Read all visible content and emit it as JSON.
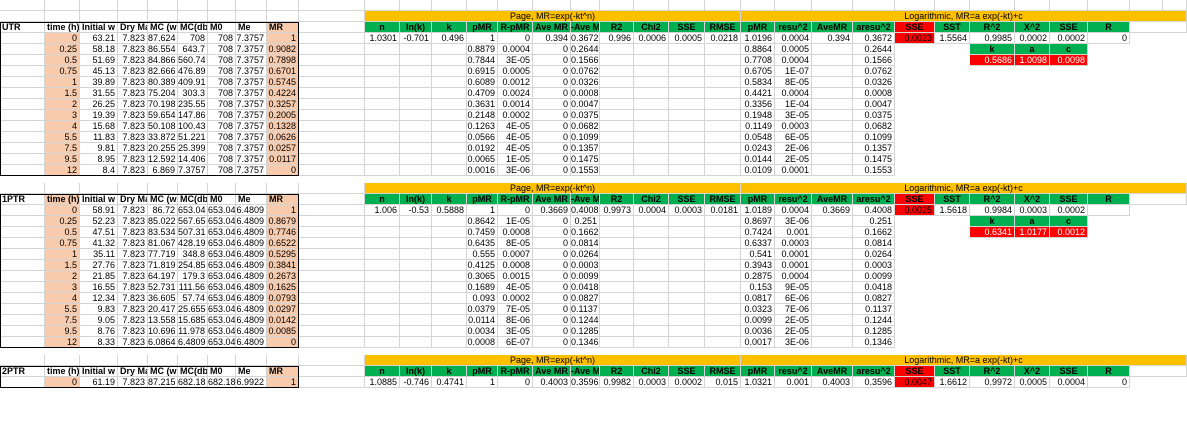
{
  "colors": {
    "header_bg": "#ffffff",
    "time_bg": "#f8cbad",
    "mr_bg": "#f8cbad",
    "page_title_bg": "#ffc000",
    "page_header_bg": "#00b050",
    "log_title_bg": "#ffc000",
    "log_header_bg": "#00b050",
    "red_bg": "#ff0000",
    "green_bg": "#00b050",
    "grid": "#d4d4d4"
  },
  "model_titles": {
    "page": "Page, MR=exp(-kt^n)",
    "log": "Logarithmic, MR=a exp(-kt)+c"
  },
  "headers": {
    "left": [
      "time (h)",
      "Initial w",
      "Dry Ma",
      "MC (wb",
      "MC(db)",
      "M0",
      "Me",
      "MR"
    ],
    "page": [
      "n",
      "ln(k)",
      "k",
      "pMR",
      "R-pMR",
      "Ave MR",
      "-Ave M",
      "R2",
      "Chi2",
      "SSE",
      "RMSE"
    ],
    "log": [
      "pMR",
      "resu^2",
      "AveMR",
      "aresu^2",
      "SSE",
      "SST",
      "R^2",
      "X^2",
      "SSE",
      "R"
    ],
    "kac": [
      "k",
      "a",
      "c"
    ]
  },
  "groups": [
    {
      "label": "UTR",
      "header_style": "white",
      "left_rows": [
        [
          "0",
          "63.21",
          "7.823",
          "87.624",
          "708",
          "708",
          "7.3757",
          "1"
        ],
        [
          "0.25",
          "58.18",
          "7.823",
          "86.554",
          "643.7",
          "708",
          "7.3757",
          "0.9082"
        ],
        [
          "0.5",
          "51.69",
          "7.823",
          "84.866",
          "560.74",
          "708",
          "7.3757",
          "0.7898"
        ],
        [
          "0.75",
          "45.13",
          "7.823",
          "82.666",
          "476.89",
          "708",
          "7.3757",
          "0.6701"
        ],
        [
          "1",
          "39.89",
          "7.823",
          "80.389",
          "409.91",
          "708",
          "7.3757",
          "0.5745"
        ],
        [
          "1.5",
          "31.55",
          "7.823",
          "75.204",
          "303.3",
          "708",
          "7.3757",
          "0.4224"
        ],
        [
          "2",
          "26.25",
          "7.823",
          "70.198",
          "235.55",
          "708",
          "7.3757",
          "0.3257"
        ],
        [
          "3",
          "19.39",
          "7.823",
          "59.654",
          "147.86",
          "708",
          "7.3757",
          "0.2005"
        ],
        [
          "4",
          "15.68",
          "7.823",
          "50.108",
          "100.43",
          "708",
          "7.3757",
          "0.1328"
        ],
        [
          "5.5",
          "11.83",
          "7.823",
          "33.872",
          "51.221",
          "708",
          "7.3757",
          "0.0626"
        ],
        [
          "7.5",
          "9.81",
          "7.823",
          "20.255",
          "25.399",
          "708",
          "7.3757",
          "0.0257"
        ],
        [
          "9.5",
          "8.95",
          "7.823",
          "12.592",
          "14.406",
          "708",
          "7.3757",
          "0.0117"
        ],
        [
          "12",
          "8.4",
          "7.823",
          "6.869",
          "7.3757",
          "708",
          "7.3757",
          "0"
        ]
      ],
      "page_params": [
        "1.0301",
        "-0.701",
        "0.496"
      ],
      "page_stats": [
        "0.394",
        "0.3672",
        "0.996",
        "0.0006",
        "0.0005",
        "0.0218"
      ],
      "page_rows": [
        [
          "1",
          "0"
        ],
        [
          "0.8879",
          "0.0004"
        ],
        [
          "0.7844",
          "3E-05"
        ],
        [
          "0.6915",
          "0.0005"
        ],
        [
          "0.6089",
          "0.0012"
        ],
        [
          "0.4709",
          "0.0024"
        ],
        [
          "0.3631",
          "0.0014"
        ],
        [
          "0.2148",
          "0.0002"
        ],
        [
          "0.1263",
          "4E-05"
        ],
        [
          "0.0566",
          "4E-05"
        ],
        [
          "0.0192",
          "4E-05"
        ],
        [
          "0.0065",
          "1E-05"
        ],
        [
          "0.0016",
          "3E-06"
        ]
      ],
      "page_avemr_col": [
        "0",
        "0",
        "0",
        "0",
        "0",
        "0",
        "0",
        "0",
        "0",
        "0",
        "0",
        "0"
      ],
      "page_dev_col": [
        "0.2644",
        "0.1566",
        "0.0762",
        "0.0326",
        "0.0008",
        "0.0047",
        "0.0375",
        "0.0682",
        "0.1099",
        "0.1357",
        "0.1475",
        "0.1553"
      ],
      "log_rows": [
        [
          "1.0196",
          "0.0004"
        ],
        [
          "0.8864",
          "0.0005"
        ],
        [
          "0.7708",
          "0.0004"
        ],
        [
          "0.6705",
          "1E-07"
        ],
        [
          "0.5834",
          "8E-05"
        ],
        [
          "0.4421",
          "0.0004"
        ],
        [
          "0.3356",
          "1E-04"
        ],
        [
          "0.1948",
          "3E-05"
        ],
        [
          "0.1149",
          "0.0003"
        ],
        [
          "0.0548",
          "6E-05"
        ],
        [
          "0.0243",
          "2E-06"
        ],
        [
          "0.0144",
          "2E-05"
        ],
        [
          "0.0109",
          "0.0001"
        ]
      ],
      "log_first": [
        "0.394",
        "0.3672"
      ],
      "log_ares_col": [
        "0.2644",
        "0.1566",
        "0.0762",
        "0.0326",
        "0.0008",
        "0.0047",
        "0.0375",
        "0.0682",
        "0.1099",
        "0.1357",
        "0.1475",
        "0.1553"
      ],
      "log_stats": [
        "0.0023",
        "1.5564",
        "0.9985",
        "0.0002",
        "0.0002",
        "0"
      ],
      "kac_values": [
        "0.5686",
        "1.0098",
        "0.0098"
      ]
    },
    {
      "label": "1PTR",
      "header_style": "orange",
      "left_rows": [
        [
          "0",
          "58.91",
          "7.823",
          "86.72",
          "653.04",
          "653.04",
          "6.4809",
          "1"
        ],
        [
          "0.25",
          "52.23",
          "7.823",
          "85.022",
          "567.65",
          "653.04",
          "6.4809",
          "0.8679"
        ],
        [
          "0.5",
          "47.51",
          "7.823",
          "83.534",
          "507.31",
          "653.04",
          "6.4809",
          "0.7746"
        ],
        [
          "0.75",
          "41.32",
          "7.823",
          "81.067",
          "428.19",
          "653.04",
          "6.4809",
          "0.6522"
        ],
        [
          "1",
          "35.11",
          "7.823",
          "77.719",
          "348.8",
          "653.04",
          "6.4809",
          "0.5295"
        ],
        [
          "1.5",
          "27.76",
          "7.823",
          "71.819",
          "254.85",
          "653.04",
          "6.4809",
          "0.3841"
        ],
        [
          "2",
          "21.85",
          "7.823",
          "64.197",
          "179.3",
          "653.04",
          "6.4809",
          "0.2673"
        ],
        [
          "3",
          "16.55",
          "7.823",
          "52.731",
          "111.56",
          "653.04",
          "6.4809",
          "0.1625"
        ],
        [
          "4",
          "12.34",
          "7.823",
          "36.605",
          "57.74",
          "653.04",
          "6.4809",
          "0.0793"
        ],
        [
          "5.5",
          "9.83",
          "7.823",
          "20.417",
          "25.655",
          "653.04",
          "6.4809",
          "0.0297"
        ],
        [
          "7.5",
          "9.05",
          "7.823",
          "13.558",
          "15.685",
          "653.04",
          "6.4809",
          "0.0142"
        ],
        [
          "9.5",
          "8.76",
          "7.823",
          "10.696",
          "11.978",
          "653.04",
          "6.4809",
          "0.0085"
        ],
        [
          "12",
          "8.33",
          "7.823",
          "6.0864",
          "6.4809",
          "653.04",
          "6.4809",
          "0"
        ]
      ],
      "page_params": [
        "1.006",
        "-0.53",
        "0.5888"
      ],
      "page_stats": [
        "0.3669",
        "0.4008",
        "0.9973",
        "0.0004",
        "0.0003",
        "0.0181"
      ],
      "page_rows": [
        [
          "1",
          "0"
        ],
        [
          "0.8642",
          "1E-05"
        ],
        [
          "0.7459",
          "0.0008"
        ],
        [
          "0.6435",
          "8E-05"
        ],
        [
          "0.555",
          "0.0007"
        ],
        [
          "0.4125",
          "0.0008"
        ],
        [
          "0.3065",
          "0.0015"
        ],
        [
          "0.1689",
          "4E-05"
        ],
        [
          "0.093",
          "0.0002"
        ],
        [
          "0.0379",
          "7E-05"
        ],
        [
          "0.0114",
          "8E-06"
        ],
        [
          "0.0034",
          "3E-05"
        ],
        [
          "0.0008",
          "6E-07"
        ]
      ],
      "page_avemr_col": [
        "0",
        "0",
        "0",
        "0",
        "0",
        "0",
        "0",
        "0",
        "0",
        "0",
        "0",
        "0"
      ],
      "page_dev_col": [
        "0.251",
        "0.1662",
        "0.0814",
        "0.0264",
        "0.0003",
        "0.0099",
        "0.0418",
        "0.0827",
        "0.1137",
        "0.1244",
        "0.1285",
        "0.1346"
      ],
      "log_rows": [
        [
          "1.0189",
          "0.0004"
        ],
        [
          "0.8697",
          "3E-06"
        ],
        [
          "0.7424",
          "0.001"
        ],
        [
          "0.6337",
          "0.0003"
        ],
        [
          "0.541",
          "0.0001"
        ],
        [
          "0.3943",
          "0.0001"
        ],
        [
          "0.2875",
          "0.0004"
        ],
        [
          "0.153",
          "9E-05"
        ],
        [
          "0.0817",
          "6E-06"
        ],
        [
          "0.0323",
          "7E-06"
        ],
        [
          "0.0099",
          "2E-05"
        ],
        [
          "0.0036",
          "2E-05"
        ],
        [
          "0.0017",
          "3E-06"
        ]
      ],
      "log_first": [
        "0.3669",
        "0.4008"
      ],
      "log_ares_col": [
        "0.251",
        "0.1662",
        "0.0814",
        "0.0264",
        "0.0003",
        "0.0099",
        "0.0418",
        "0.0827",
        "0.1137",
        "0.1244",
        "0.1285",
        "0.1346"
      ],
      "log_stats": [
        "0.0025",
        "1.5618",
        "0.9984",
        "0.0003",
        "0.0002",
        ""
      ],
      "kac_values": [
        "0.6341",
        "1.0177",
        "0.0012"
      ]
    },
    {
      "label": "2PTR",
      "header_style": "white",
      "left_rows": [
        [
          "0",
          "61.19",
          "7.823",
          "87.215",
          "682.18",
          "682.18",
          "6.9922",
          "1"
        ]
      ],
      "page_params": [
        "1.0885",
        "-0.746",
        "0.4741"
      ],
      "page_stats": [
        "0.4003",
        "0.3596",
        "0.9982",
        "0.0003",
        "0.0002",
        "0.015"
      ],
      "page_rows": [
        [
          "1",
          "0"
        ]
      ],
      "page_avemr_col": [],
      "page_dev_col": [],
      "log_rows": [
        [
          "1.0321",
          "0.001"
        ]
      ],
      "log_first": [
        "0.4003",
        "0.3596"
      ],
      "log_ares_col": [],
      "log_stats": [
        "0.0047",
        "1.6612",
        "0.9972",
        "0.0005",
        "0.0004",
        "0"
      ],
      "kac_values": []
    }
  ]
}
